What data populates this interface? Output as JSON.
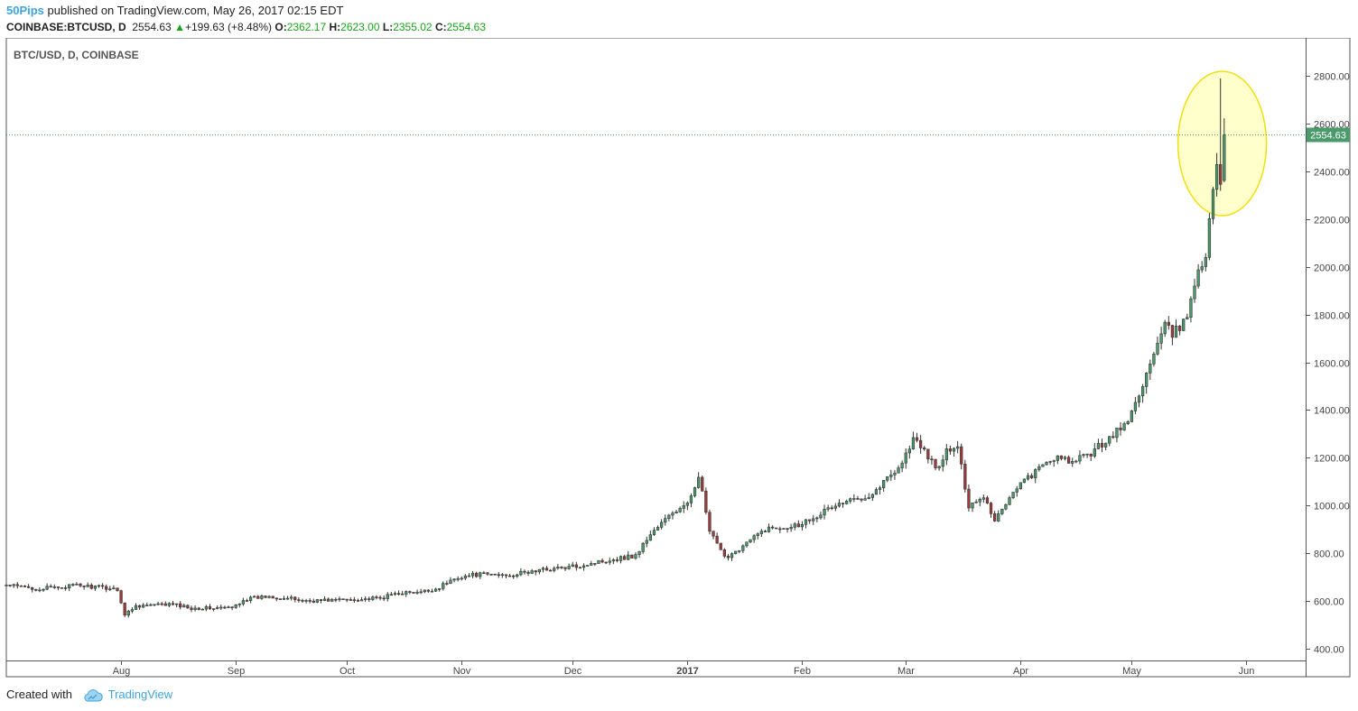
{
  "header": {
    "author": "50Pips",
    "published_text": "published on TradingView.com, May 26, 2017 02:15 EDT",
    "symbol": "COINBASE:BTCUSD, D",
    "price": "2554.63",
    "change": "+199.63 (+8.48%)",
    "o_label": "O:",
    "o_value": "2362.17",
    "h_label": "H:",
    "h_value": "2623.00",
    "l_label": "L:",
    "l_value": "2355.02",
    "c_label": "C:",
    "c_value": "2554.63"
  },
  "footer": {
    "created_with": "Created with",
    "brand": "TradingView"
  },
  "colors": {
    "up": "#4a9a6c",
    "down": "#a03a3a",
    "accent": "#3da5dc",
    "last_price": "#4a9a6c",
    "highlight": "#ffffcc"
  },
  "chart_data": {
    "type": "candlestick",
    "title": "BTC/USD, D, COINBASE",
    "ylim": [
      350,
      2960
    ],
    "y_ticks": [
      "400.00",
      "600.00",
      "800.00",
      "1000.00",
      "1200.00",
      "1400.00",
      "1600.00",
      "1800.00",
      "2000.00",
      "2200.00",
      "2400.00",
      "2600.00",
      "2800.00"
    ],
    "x_ticks": [
      {
        "label": "Aug",
        "date": "2016-08-01"
      },
      {
        "label": "Sep",
        "date": "2016-09-01"
      },
      {
        "label": "Oct",
        "date": "2016-10-01"
      },
      {
        "label": "Nov",
        "date": "2016-11-01"
      },
      {
        "label": "Dec",
        "date": "2016-12-01"
      },
      {
        "label": "2017",
        "date": "2017-01-01",
        "bold": true
      },
      {
        "label": "Feb",
        "date": "2017-02-01"
      },
      {
        "label": "Mar",
        "date": "2017-03-01"
      },
      {
        "label": "Apr",
        "date": "2017-04-01"
      },
      {
        "label": "May",
        "date": "2017-05-01"
      },
      {
        "label": "Jun",
        "date": "2017-06-01"
      }
    ],
    "x_range": [
      "2016-07-01",
      "2017-06-17"
    ],
    "last_price": 2554.63,
    "last_price_label": "2554.63",
    "highlight_date": "2017-05-24",
    "anchors": [
      [
        "2016-07-01",
        665
      ],
      [
        "2016-07-10",
        650
      ],
      [
        "2016-07-20",
        665
      ],
      [
        "2016-07-31",
        650
      ],
      [
        "2016-08-02",
        540
      ],
      [
        "2016-08-05",
        580
      ],
      [
        "2016-08-15",
        585
      ],
      [
        "2016-08-20",
        570
      ],
      [
        "2016-08-31",
        570
      ],
      [
        "2016-09-03",
        605
      ],
      [
        "2016-09-10",
        620
      ],
      [
        "2016-09-20",
        600
      ],
      [
        "2016-09-30",
        605
      ],
      [
        "2016-10-10",
        610
      ],
      [
        "2016-10-15",
        635
      ],
      [
        "2016-10-20",
        632
      ],
      [
        "2016-10-25",
        650
      ],
      [
        "2016-10-31",
        700
      ],
      [
        "2016-11-05",
        710
      ],
      [
        "2016-11-15",
        710
      ],
      [
        "2016-11-25",
        735
      ],
      [
        "2016-11-30",
        740
      ],
      [
        "2016-12-10",
        770
      ],
      [
        "2016-12-18",
        790
      ],
      [
        "2016-12-22",
        880
      ],
      [
        "2016-12-28",
        970
      ],
      [
        "2017-01-01",
        1000
      ],
      [
        "2017-01-04",
        1130
      ],
      [
        "2017-01-07",
        890
      ],
      [
        "2017-01-11",
        780
      ],
      [
        "2017-01-15",
        820
      ],
      [
        "2017-01-22",
        900
      ],
      [
        "2017-01-31",
        920
      ],
      [
        "2017-02-10",
        1000
      ],
      [
        "2017-02-20",
        1050
      ],
      [
        "2017-02-28",
        1180
      ],
      [
        "2017-03-03",
        1280
      ],
      [
        "2017-03-10",
        1150
      ],
      [
        "2017-03-12",
        1230
      ],
      [
        "2017-03-15",
        1240
      ],
      [
        "2017-03-18",
        1000
      ],
      [
        "2017-03-22",
        1040
      ],
      [
        "2017-03-25",
        940
      ],
      [
        "2017-03-31",
        1080
      ],
      [
        "2017-04-10",
        1200
      ],
      [
        "2017-04-15",
        1180
      ],
      [
        "2017-04-20",
        1220
      ],
      [
        "2017-04-30",
        1350
      ],
      [
        "2017-05-05",
        1550
      ],
      [
        "2017-05-10",
        1750
      ],
      [
        "2017-05-12",
        1720
      ],
      [
        "2017-05-15",
        1760
      ],
      [
        "2017-05-17",
        1850
      ],
      [
        "2017-05-19",
        2000
      ],
      [
        "2017-05-21",
        2050
      ],
      [
        "2017-05-22",
        2200
      ],
      [
        "2017-05-23",
        2300
      ],
      [
        "2017-05-24",
        2440
      ],
      [
        "2017-05-25",
        2355
      ],
      [
        "2017-05-26",
        2554.63
      ]
    ]
  }
}
